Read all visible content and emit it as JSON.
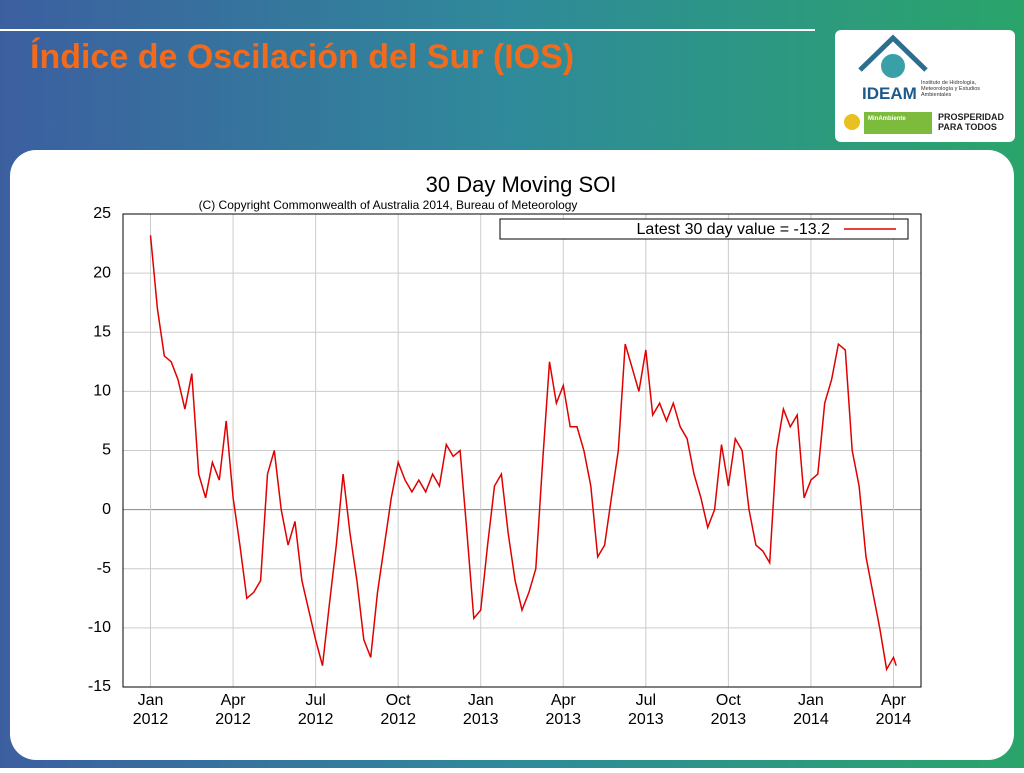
{
  "slide": {
    "title": "Índice de Oscilación del Sur (IOS)",
    "logo_name": "IDEAM",
    "logo_text": "Instituto de Hidrología, Meteorología y Estudios Ambientales",
    "ministry": "MinAmbiente",
    "motto": "PROSPERIDAD PARA TODOS"
  },
  "chart_data": {
    "type": "line",
    "title": "30 Day Moving SOI",
    "subtitle": "(C) Copyright Commonwealth of Australia 2014, Bureau of Meteorology",
    "x": [
      0,
      0.25,
      0.5,
      0.75,
      1,
      1.25,
      1.5,
      1.75,
      2,
      2.25,
      2.5,
      2.75,
      3,
      3.25,
      3.5,
      3.75,
      4,
      4.25,
      4.5,
      4.75,
      5,
      5.25,
      5.5,
      5.75,
      6,
      6.25,
      6.5,
      6.75,
      7,
      7.25,
      7.5,
      7.75,
      8,
      8.25,
      8.5,
      8.75,
      9,
      9.25,
      9.5,
      9.75,
      10,
      10.25,
      10.5,
      10.75,
      11,
      11.25,
      11.5,
      11.75,
      12,
      12.25,
      12.5,
      12.75,
      13,
      13.25,
      13.5,
      13.75,
      14,
      14.25,
      14.5,
      14.75,
      15,
      15.25,
      15.5,
      15.75,
      16,
      16.25,
      16.5,
      16.75,
      17,
      17.25,
      17.5,
      17.75,
      18,
      18.25,
      18.5,
      18.75,
      19,
      19.25,
      19.5,
      19.75,
      20,
      20.25,
      20.5,
      20.75,
      21,
      21.25,
      21.5,
      21.75,
      22,
      22.25,
      22.5,
      22.75,
      23,
      23.25,
      23.5,
      23.75,
      24,
      24.25,
      24.5,
      24.75,
      25,
      25.25,
      25.5,
      25.75,
      26,
      26.25,
      26.5,
      26.75,
      27,
      27.1
    ],
    "series": [
      {
        "name": "Latest 30 day value = -13.2",
        "color": "#e00000",
        "values": [
          23.2,
          17,
          13,
          12.5,
          11,
          8.5,
          11.5,
          3,
          1,
          4,
          2.5,
          7.5,
          1,
          -3,
          -7.5,
          -7,
          -6,
          3,
          5,
          0,
          -3,
          -1,
          -6,
          -8.5,
          -11,
          -13.2,
          -8,
          -3,
          3,
          -2,
          -6,
          -11,
          -12.5,
          -7,
          -3,
          1,
          4,
          2.5,
          1.5,
          2.5,
          1.5,
          3,
          2,
          5.5,
          4.5,
          5,
          -2,
          -9.2,
          -8.5,
          -3,
          2,
          3,
          -2,
          -6,
          -8.5,
          -7,
          -5,
          4,
          12.5,
          9,
          10.5,
          7,
          7,
          5,
          2,
          -4,
          -3,
          1,
          5,
          14,
          12,
          10,
          13.5,
          8,
          9,
          7.5,
          9,
          7,
          6,
          3,
          1,
          -1.5,
          0,
          5.5,
          2,
          6,
          5,
          0,
          -3,
          -3.5,
          -4.5,
          5,
          8.5,
          7,
          8,
          1,
          2.5,
          3,
          9,
          11,
          14,
          13.5,
          5,
          2,
          -4,
          -7,
          -10,
          -13.5,
          -12.5,
          -13.2
        ]
      }
    ],
    "xlim": [
      -1,
      28
    ],
    "ylim": [
      -15,
      25
    ],
    "xticks": [
      {
        "value": 0,
        "label": "Jan 2012"
      },
      {
        "value": 3,
        "label": "Apr 2012"
      },
      {
        "value": 6,
        "label": "Jul 2012"
      },
      {
        "value": 9,
        "label": "Oct 2012"
      },
      {
        "value": 12,
        "label": "Jan 2013"
      },
      {
        "value": 15,
        "label": "Apr 2013"
      },
      {
        "value": 18,
        "label": "Jul 2013"
      },
      {
        "value": 21,
        "label": "Oct 2013"
      },
      {
        "value": 24,
        "label": "Jan 2014"
      },
      {
        "value": 27,
        "label": "Apr 2014"
      }
    ],
    "yticks": [
      -15,
      -10,
      -5,
      0,
      5,
      10,
      15,
      20,
      25
    ],
    "grid": true,
    "legend": "upper right"
  }
}
